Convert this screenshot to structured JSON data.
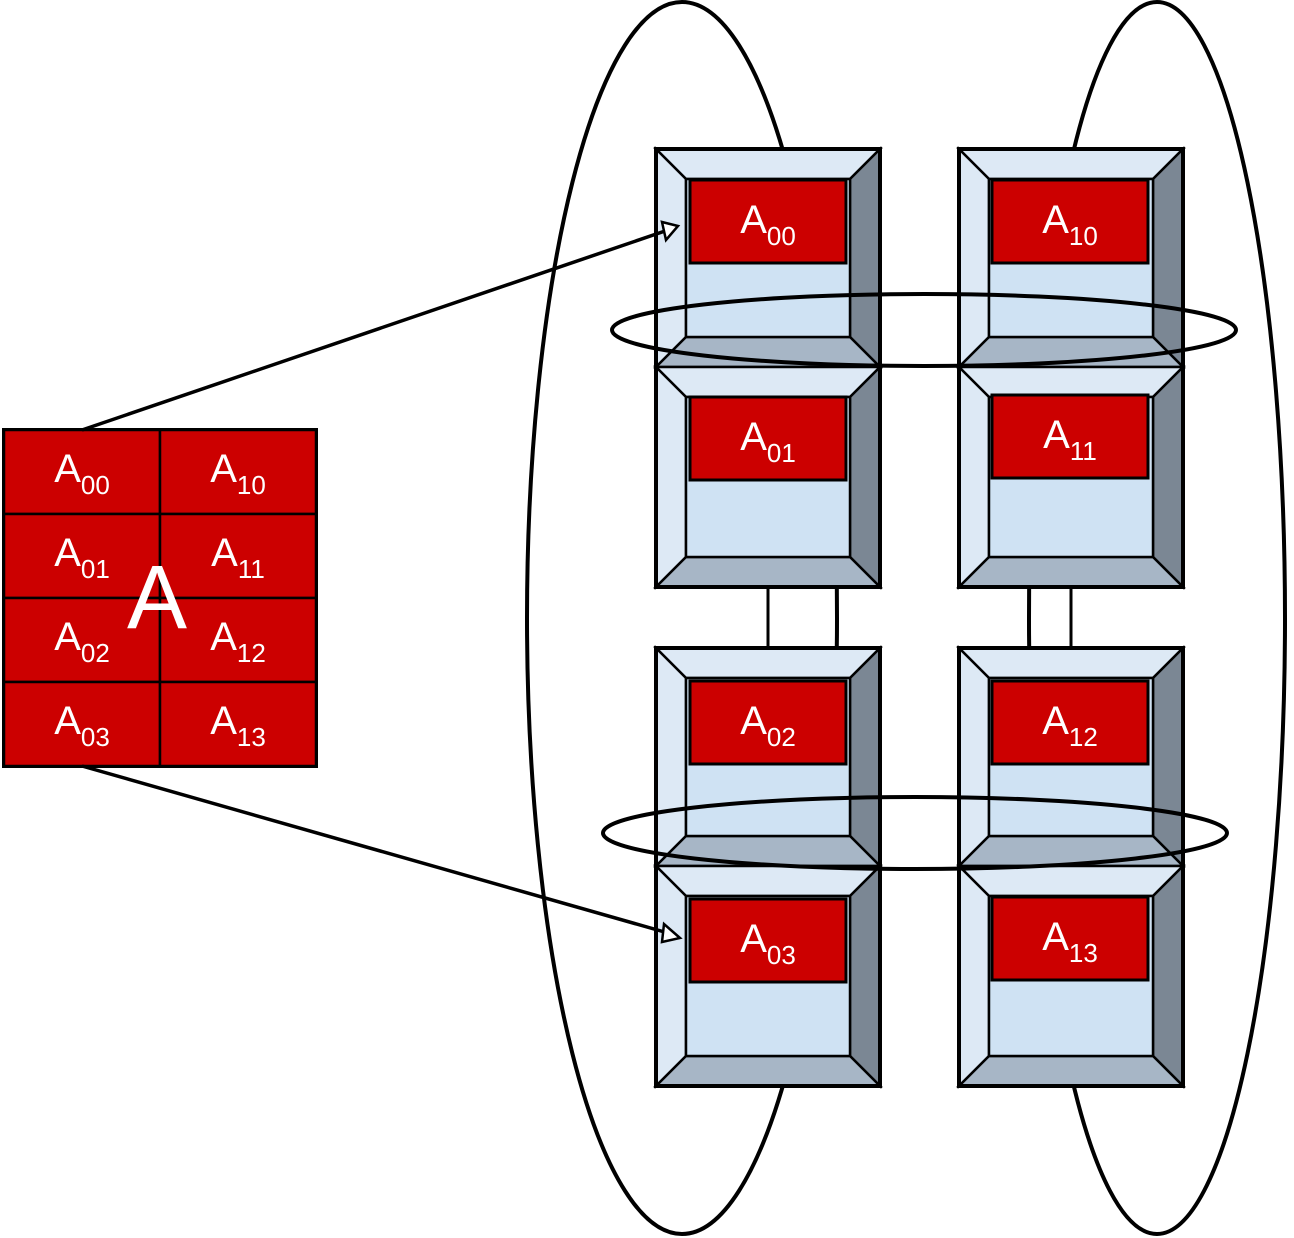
{
  "matrix": {
    "label": "A",
    "cells": [
      {
        "base": "A",
        "sub": "00"
      },
      {
        "base": "A",
        "sub": "10"
      },
      {
        "base": "A",
        "sub": "01"
      },
      {
        "base": "A",
        "sub": "11"
      },
      {
        "base": "A",
        "sub": "02"
      },
      {
        "base": "A",
        "sub": "12"
      },
      {
        "base": "A",
        "sub": "03"
      },
      {
        "base": "A",
        "sub": "13"
      }
    ]
  },
  "nodes": [
    {
      "base": "A",
      "sub": "00"
    },
    {
      "base": "A",
      "sub": "01"
    },
    {
      "base": "A",
      "sub": "10"
    },
    {
      "base": "A",
      "sub": "11"
    },
    {
      "base": "A",
      "sub": "02"
    },
    {
      "base": "A",
      "sub": "03"
    },
    {
      "base": "A",
      "sub": "12"
    },
    {
      "base": "A",
      "sub": "13"
    }
  ],
  "colors": {
    "block_red": "#cc0000",
    "node_face": "#cfe2f3",
    "bevel_light": "#dde9f5",
    "bevel_mid": "#a7b6c6",
    "bevel_dark": "#7b8794",
    "stroke": "#000000"
  }
}
